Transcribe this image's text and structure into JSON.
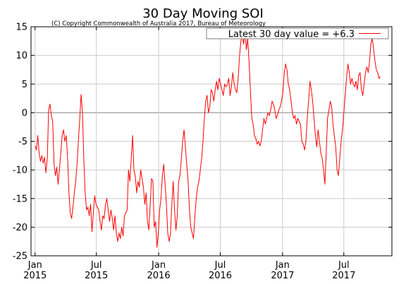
{
  "chart_data": {
    "type": "line",
    "title": "30 Day Moving SOI",
    "subtitle": "(C) Copyright Commonwealth of Australia 2017, Bureau of Meteorology",
    "xlabel": "",
    "ylabel": "",
    "xlim": [
      "2014-12-20",
      "2017-11-20"
    ],
    "ylim": [
      -25,
      15
    ],
    "grid": true,
    "legend_position": "top-right",
    "y_ticks": [
      -25,
      -20,
      -15,
      -10,
      -5,
      0,
      5,
      10,
      15
    ],
    "x_ticks": [
      {
        "date": "2015-01-01",
        "month": "Jan",
        "year": "2015"
      },
      {
        "date": "2015-07-01",
        "month": "Jul",
        "year": "2015"
      },
      {
        "date": "2016-01-01",
        "month": "Jan",
        "year": "2016"
      },
      {
        "date": "2016-07-01",
        "month": "Jul",
        "year": "2016"
      },
      {
        "date": "2017-01-01",
        "month": "Jan",
        "year": "2017"
      },
      {
        "date": "2017-07-01",
        "month": "Jul",
        "year": "2017"
      }
    ],
    "series": [
      {
        "name": "Latest 30 day value = +6.3",
        "color": "#ff0000",
        "points": [
          [
            "2015-01-01",
            -5.8
          ],
          [
            "2015-01-05",
            -6.5
          ],
          [
            "2015-01-09",
            -4.0
          ],
          [
            "2015-01-13",
            -7.0
          ],
          [
            "2015-01-17",
            -8.5
          ],
          [
            "2015-01-21",
            -7.5
          ],
          [
            "2015-01-25",
            -8.8
          ],
          [
            "2015-01-29",
            -7.8
          ],
          [
            "2015-02-02",
            -10.5
          ],
          [
            "2015-02-06",
            -8.0
          ],
          [
            "2015-02-10",
            0.5
          ],
          [
            "2015-02-14",
            1.5
          ],
          [
            "2015-02-18",
            -0.5
          ],
          [
            "2015-02-22",
            -1.5
          ],
          [
            "2015-02-26",
            -9.0
          ],
          [
            "2015-03-02",
            -11.0
          ],
          [
            "2015-03-06",
            -9.5
          ],
          [
            "2015-03-10",
            -12.5
          ],
          [
            "2015-03-14",
            -10.0
          ],
          [
            "2015-03-18",
            -7.0
          ],
          [
            "2015-03-22",
            -4.0
          ],
          [
            "2015-03-26",
            -3.0
          ],
          [
            "2015-03-30",
            -5.0
          ],
          [
            "2015-04-03",
            -4.0
          ],
          [
            "2015-04-07",
            -8.0
          ],
          [
            "2015-04-11",
            -14.0
          ],
          [
            "2015-04-15",
            -17.5
          ],
          [
            "2015-04-19",
            -18.5
          ],
          [
            "2015-04-23",
            -16.5
          ],
          [
            "2015-04-27",
            -14.0
          ],
          [
            "2015-05-01",
            -12.0
          ],
          [
            "2015-05-05",
            -9.0
          ],
          [
            "2015-05-09",
            -5.0
          ],
          [
            "2015-05-13",
            -1.0
          ],
          [
            "2015-05-17",
            3.2
          ],
          [
            "2015-05-21",
            0.0
          ],
          [
            "2015-05-25",
            -8.0
          ],
          [
            "2015-05-29",
            -14.0
          ],
          [
            "2015-06-02",
            -17.0
          ],
          [
            "2015-06-06",
            -16.5
          ],
          [
            "2015-06-10",
            -18.0
          ],
          [
            "2015-06-14",
            -16.0
          ],
          [
            "2015-06-18",
            -20.8
          ],
          [
            "2015-06-22",
            -17.5
          ],
          [
            "2015-06-26",
            -14.5
          ],
          [
            "2015-06-30",
            -16.0
          ],
          [
            "2015-07-04",
            -16.5
          ],
          [
            "2015-07-08",
            -17.0
          ],
          [
            "2015-07-12",
            -19.0
          ],
          [
            "2015-07-16",
            -20.5
          ],
          [
            "2015-07-20",
            -18.0
          ],
          [
            "2015-07-24",
            -18.5
          ],
          [
            "2015-07-28",
            -16.0
          ],
          [
            "2015-08-01",
            -15.0
          ],
          [
            "2015-08-05",
            -17.0
          ],
          [
            "2015-08-09",
            -19.0
          ],
          [
            "2015-08-13",
            -17.0
          ],
          [
            "2015-08-17",
            -18.5
          ],
          [
            "2015-08-21",
            -20.5
          ],
          [
            "2015-08-25",
            -18.0
          ],
          [
            "2015-08-29",
            -21.0
          ],
          [
            "2015-09-02",
            -22.5
          ],
          [
            "2015-09-06",
            -21.0
          ],
          [
            "2015-09-10",
            -22.0
          ],
          [
            "2015-09-14",
            -20.0
          ],
          [
            "2015-09-18",
            -21.5
          ],
          [
            "2015-09-22",
            -18.0
          ],
          [
            "2015-09-26",
            -17.5
          ],
          [
            "2015-09-30",
            -17.0
          ],
          [
            "2015-10-04",
            -10.0
          ],
          [
            "2015-10-08",
            -12.0
          ],
          [
            "2015-10-12",
            -8.0
          ],
          [
            "2015-10-16",
            -4.0
          ],
          [
            "2015-10-20",
            -10.0
          ],
          [
            "2015-10-24",
            -11.0
          ],
          [
            "2015-10-28",
            -14.0
          ],
          [
            "2015-11-01",
            -12.0
          ],
          [
            "2015-11-05",
            -13.0
          ],
          [
            "2015-11-09",
            -10.0
          ],
          [
            "2015-11-13",
            -11.5
          ],
          [
            "2015-11-17",
            -13.0
          ],
          [
            "2015-11-21",
            -16.0
          ],
          [
            "2015-11-25",
            -14.0
          ],
          [
            "2015-11-29",
            -19.0
          ],
          [
            "2015-12-03",
            -20.5
          ],
          [
            "2015-12-07",
            -16.0
          ],
          [
            "2015-12-11",
            -11.5
          ],
          [
            "2015-12-15",
            -12.0
          ],
          [
            "2015-12-19",
            -20.0
          ],
          [
            "2015-12-23",
            -19.0
          ],
          [
            "2015-12-27",
            -23.5
          ],
          [
            "2015-12-31",
            -21.0
          ],
          [
            "2016-01-04",
            -17.0
          ],
          [
            "2016-01-08",
            -15.0
          ],
          [
            "2016-01-12",
            -11.0
          ],
          [
            "2016-01-16",
            -9.0
          ],
          [
            "2016-01-20",
            -12.5
          ],
          [
            "2016-01-24",
            -16.0
          ],
          [
            "2016-01-28",
            -21.0
          ],
          [
            "2016-02-01",
            -22.5
          ],
          [
            "2016-02-05",
            -21.0
          ],
          [
            "2016-02-09",
            -16.0
          ],
          [
            "2016-02-13",
            -12.0
          ],
          [
            "2016-02-17",
            -17.0
          ],
          [
            "2016-02-21",
            -20.5
          ],
          [
            "2016-02-25",
            -18.0
          ],
          [
            "2016-02-29",
            -12.0
          ],
          [
            "2016-03-04",
            -11.0
          ],
          [
            "2016-03-08",
            -8.0
          ],
          [
            "2016-03-12",
            -5.0
          ],
          [
            "2016-03-16",
            -3.0
          ],
          [
            "2016-03-20",
            -6.0
          ],
          [
            "2016-03-24",
            -9.0
          ],
          [
            "2016-03-28",
            -12.0
          ],
          [
            "2016-04-01",
            -17.0
          ],
          [
            "2016-04-05",
            -20.0
          ],
          [
            "2016-04-09",
            -21.0
          ],
          [
            "2016-04-13",
            -22.0
          ],
          [
            "2016-04-17",
            -18.0
          ],
          [
            "2016-04-21",
            -15.0
          ],
          [
            "2016-04-25",
            -13.0
          ],
          [
            "2016-04-29",
            -12.0
          ],
          [
            "2016-05-03",
            -10.0
          ],
          [
            "2016-05-07",
            -8.0
          ],
          [
            "2016-05-11",
            -5.0
          ],
          [
            "2016-05-15",
            -1.0
          ],
          [
            "2016-05-19",
            2.0
          ],
          [
            "2016-05-23",
            3.0
          ],
          [
            "2016-05-27",
            0.0
          ],
          [
            "2016-05-31",
            1.0
          ],
          [
            "2016-06-04",
            4.0
          ],
          [
            "2016-06-08",
            3.5
          ],
          [
            "2016-06-12",
            2.0
          ],
          [
            "2016-06-16",
            4.0
          ],
          [
            "2016-06-20",
            5.5
          ],
          [
            "2016-06-24",
            4.0
          ],
          [
            "2016-06-28",
            6.0
          ],
          [
            "2016-07-02",
            5.0
          ],
          [
            "2016-07-06",
            4.0
          ],
          [
            "2016-07-10",
            3.0
          ],
          [
            "2016-07-14",
            5.0
          ],
          [
            "2016-07-18",
            4.5
          ],
          [
            "2016-07-22",
            5.0
          ],
          [
            "2016-07-26",
            6.0
          ],
          [
            "2016-07-30",
            3.0
          ],
          [
            "2016-08-03",
            4.5
          ],
          [
            "2016-08-07",
            7.0
          ],
          [
            "2016-08-11",
            5.0
          ],
          [
            "2016-08-15",
            4.0
          ],
          [
            "2016-08-19",
            3.5
          ],
          [
            "2016-08-23",
            6.0
          ],
          [
            "2016-08-27",
            10.0
          ],
          [
            "2016-08-31",
            12.5
          ],
          [
            "2016-09-04",
            13.5
          ],
          [
            "2016-09-08",
            12.0
          ],
          [
            "2016-09-12",
            14.0
          ],
          [
            "2016-09-16",
            11.0
          ],
          [
            "2016-09-20",
            13.0
          ],
          [
            "2016-09-24",
            9.0
          ],
          [
            "2016-09-28",
            4.0
          ],
          [
            "2016-10-02",
            -1.0
          ],
          [
            "2016-10-06",
            -2.0
          ],
          [
            "2016-10-10",
            -4.0
          ],
          [
            "2016-10-14",
            -4.5
          ],
          [
            "2016-10-18",
            -5.5
          ],
          [
            "2016-10-22",
            -5.0
          ],
          [
            "2016-10-26",
            -5.8
          ],
          [
            "2016-10-30",
            -5.0
          ],
          [
            "2016-11-03",
            -3.0
          ],
          [
            "2016-11-07",
            -1.0
          ],
          [
            "2016-11-11",
            -2.0
          ],
          [
            "2016-11-15",
            -1.0
          ],
          [
            "2016-11-19",
            0.0
          ],
          [
            "2016-11-23",
            -0.5
          ],
          [
            "2016-11-27",
            0.5
          ],
          [
            "2016-12-01",
            2.0
          ],
          [
            "2016-12-05",
            1.5
          ],
          [
            "2016-12-09",
            0.5
          ],
          [
            "2016-12-13",
            -1.0
          ],
          [
            "2016-12-17",
            -0.5
          ],
          [
            "2016-12-21",
            0.5
          ],
          [
            "2016-12-25",
            1.0
          ],
          [
            "2016-12-29",
            2.0
          ],
          [
            "2017-01-02",
            3.5
          ],
          [
            "2017-01-06",
            7.0
          ],
          [
            "2017-01-10",
            8.5
          ],
          [
            "2017-01-14",
            7.5
          ],
          [
            "2017-01-18",
            5.0
          ],
          [
            "2017-01-22",
            4.0
          ],
          [
            "2017-01-26",
            2.0
          ],
          [
            "2017-01-30",
            0.0
          ],
          [
            "2017-02-03",
            -1.0
          ],
          [
            "2017-02-07",
            -0.5
          ],
          [
            "2017-02-11",
            -2.0
          ],
          [
            "2017-02-15",
            -1.0
          ],
          [
            "2017-02-19",
            -1.5
          ],
          [
            "2017-02-23",
            -2.0
          ],
          [
            "2017-02-27",
            -5.0
          ],
          [
            "2017-03-03",
            -5.5
          ],
          [
            "2017-03-07",
            -6.5
          ],
          [
            "2017-03-11",
            -5.0
          ],
          [
            "2017-03-15",
            -1.0
          ],
          [
            "2017-03-19",
            2.0
          ],
          [
            "2017-03-23",
            5.5
          ],
          [
            "2017-03-27",
            4.0
          ],
          [
            "2017-03-31",
            2.0
          ],
          [
            "2017-04-04",
            -1.0
          ],
          [
            "2017-04-08",
            -4.0
          ],
          [
            "2017-04-12",
            -6.0
          ],
          [
            "2017-04-16",
            -3.0
          ],
          [
            "2017-04-20",
            -5.0
          ],
          [
            "2017-04-24",
            -7.0
          ],
          [
            "2017-04-28",
            -8.0
          ],
          [
            "2017-05-02",
            -10.0
          ],
          [
            "2017-05-06",
            -12.5
          ],
          [
            "2017-05-10",
            -7.0
          ],
          [
            "2017-05-14",
            -1.0
          ],
          [
            "2017-05-18",
            0.5
          ],
          [
            "2017-05-22",
            2.0
          ],
          [
            "2017-05-26",
            1.0
          ],
          [
            "2017-05-30",
            -2.0
          ],
          [
            "2017-06-03",
            -4.0
          ],
          [
            "2017-06-07",
            -6.0
          ],
          [
            "2017-06-11",
            -10.0
          ],
          [
            "2017-06-15",
            -11.0
          ],
          [
            "2017-06-19",
            -8.0
          ],
          [
            "2017-06-23",
            -5.0
          ],
          [
            "2017-06-27",
            -3.0
          ],
          [
            "2017-07-01",
            0.0
          ],
          [
            "2017-07-05",
            3.0
          ],
          [
            "2017-07-09",
            6.0
          ],
          [
            "2017-07-13",
            8.5
          ],
          [
            "2017-07-17",
            7.0
          ],
          [
            "2017-07-21",
            5.0
          ],
          [
            "2017-07-25",
            6.0
          ],
          [
            "2017-07-29",
            5.0
          ],
          [
            "2017-08-02",
            4.5
          ],
          [
            "2017-08-06",
            5.5
          ],
          [
            "2017-08-10",
            4.0
          ],
          [
            "2017-08-14",
            6.5
          ],
          [
            "2017-08-18",
            7.0
          ],
          [
            "2017-08-22",
            4.0
          ],
          [
            "2017-08-26",
            3.0
          ],
          [
            "2017-08-30",
            5.0
          ],
          [
            "2017-09-03",
            7.0
          ],
          [
            "2017-09-07",
            8.0
          ],
          [
            "2017-09-11",
            7.0
          ],
          [
            "2017-09-15",
            9.0
          ],
          [
            "2017-09-19",
            12.0
          ],
          [
            "2017-09-23",
            13.0
          ],
          [
            "2017-09-27",
            11.0
          ],
          [
            "2017-10-01",
            9.0
          ],
          [
            "2017-10-05",
            7.5
          ],
          [
            "2017-10-09",
            7.0
          ],
          [
            "2017-10-13",
            6.0
          ],
          [
            "2017-10-17",
            6.3
          ]
        ]
      }
    ]
  }
}
